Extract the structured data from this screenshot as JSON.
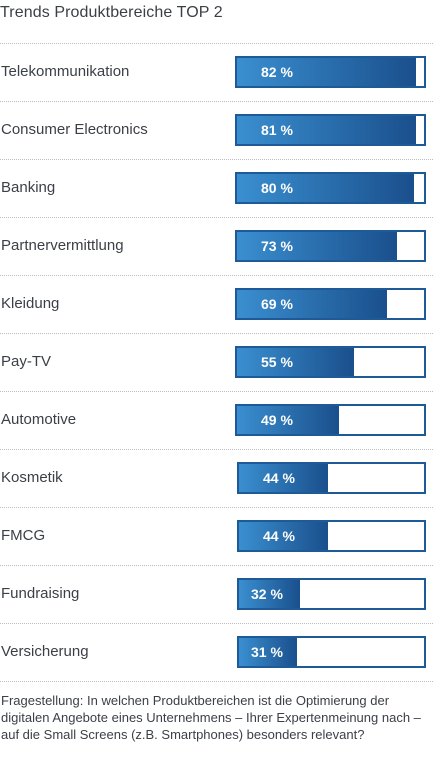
{
  "title": "Trends Produktbereiche TOP 2",
  "question": "Fragestellung: In welchen Produktbereichen ist die Optimierung der digitalen Angebote eines Unternehmens – Ihrer Expertenmeinung nach – auf die Small Screens (z.B. Smartphones) besonders relevant?",
  "colors": {
    "dark": "#1a4f8c",
    "light": "#3a8fd0",
    "border": "#1f5a98"
  },
  "chart_data": {
    "type": "bar",
    "orientation": "horizontal",
    "title": "Trends Produktbereiche TOP 2",
    "categories": [
      "Telekommunikation",
      "Consumer Electronics",
      "Banking",
      "Partnervermittlung",
      "Kleidung",
      "Pay-TV",
      "Automotive",
      "Kosmetik",
      "FMCG",
      "Fundraising",
      "Versicherung"
    ],
    "values": [
      82,
      81,
      80,
      73,
      69,
      55,
      49,
      44,
      44,
      32,
      31
    ],
    "value_labels": [
      "82 %",
      "81 %",
      "80 %",
      "73 %",
      "69 %",
      "55 %",
      "49 %",
      "44 %",
      "44 %",
      "32 %",
      "31 %"
    ],
    "xlim": [
      0,
      100
    ],
    "grid": false
  }
}
